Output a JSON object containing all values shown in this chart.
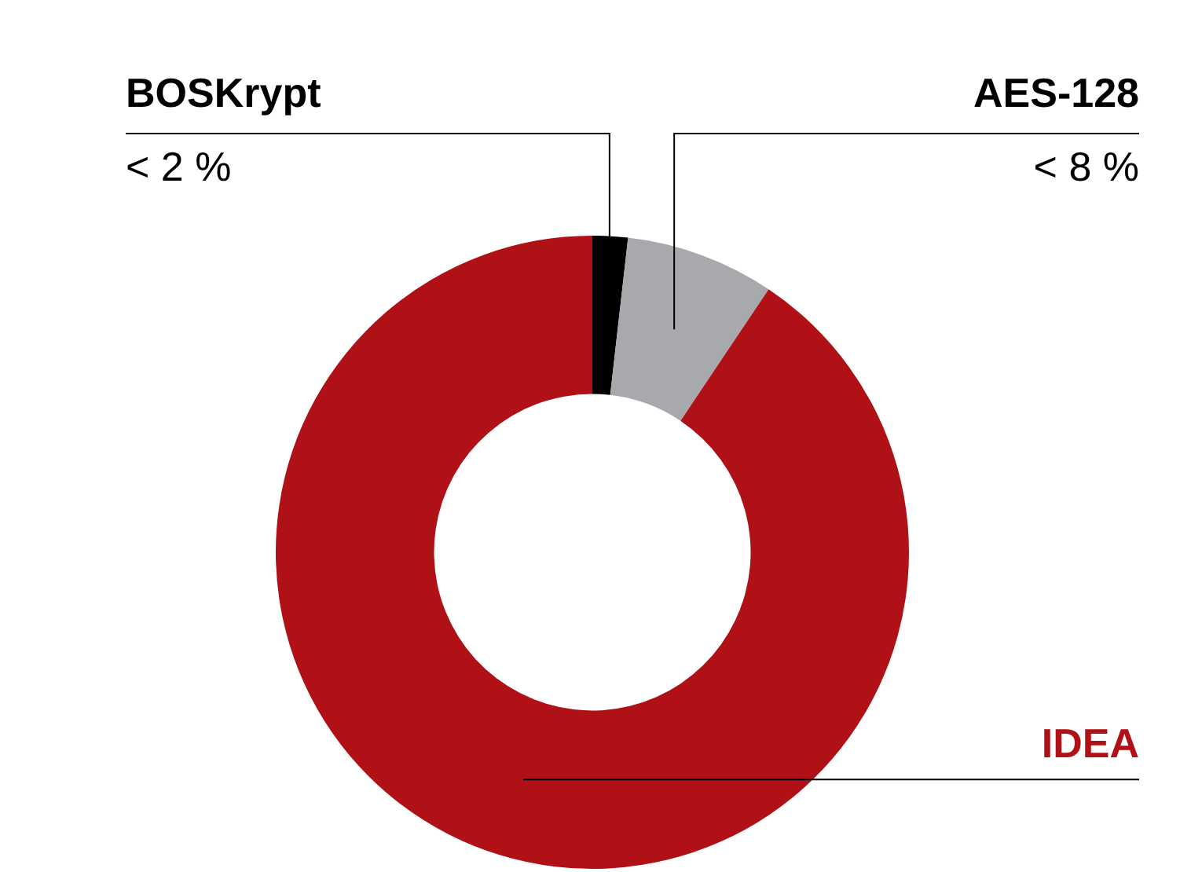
{
  "chart_data": {
    "type": "donut",
    "categories": [
      "BOSKrypt",
      "AES-128",
      "IDEA"
    ],
    "values": [
      1.8,
      7.6,
      90.6
    ],
    "colors": [
      "#000000",
      "#a7a9ac",
      "#b01116"
    ],
    "value_labels": [
      "< 2 %",
      "< 8 %",
      null
    ],
    "legend": false
  }
}
